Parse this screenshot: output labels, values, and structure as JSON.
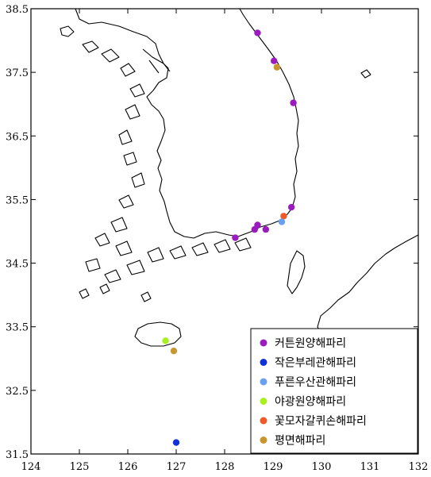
{
  "map": {
    "lon_range": [
      124,
      132
    ],
    "lat_range": [
      31.5,
      38.5
    ],
    "x_ticks": [
      124,
      125,
      126,
      127,
      128,
      129,
      130,
      131,
      132
    ],
    "y_ticks": [
      31.5,
      32.5,
      33.5,
      34.5,
      35.5,
      36.5,
      37.5,
      38.5
    ],
    "x_tick_labels": [
      "124",
      "125",
      "126",
      "127",
      "128",
      "129",
      "130",
      "131",
      "132"
    ],
    "y_tick_labels": [
      "31.5",
      "32.5",
      "33.5",
      "34.5",
      "35.5",
      "36.5",
      "37.5",
      "38.5"
    ]
  },
  "legend": {
    "placement": "bottom-right",
    "entries": [
      {
        "label": "커튼원양해파리",
        "color": "#9b1bbf"
      },
      {
        "label": "작은부레관해파리",
        "color": "#1030d8"
      },
      {
        "label": "푸른우산관해파리",
        "color": "#6aa0f0"
      },
      {
        "label": "야광원양해파리",
        "color": "#a8f020"
      },
      {
        "label": "꽃모자갈퀴손해파리",
        "color": "#f05a28"
      },
      {
        "label": "평면해파리",
        "color": "#c8962e"
      }
    ]
  },
  "points": [
    {
      "species": 0,
      "lon": 128.68,
      "lat": 38.12
    },
    {
      "species": 0,
      "lon": 129.02,
      "lat": 37.68
    },
    {
      "species": 5,
      "lon": 129.08,
      "lat": 37.58
    },
    {
      "species": 0,
      "lon": 129.42,
      "lat": 37.02
    },
    {
      "species": 0,
      "lon": 129.38,
      "lat": 35.38
    },
    {
      "species": 4,
      "lon": 129.22,
      "lat": 35.24
    },
    {
      "species": 2,
      "lon": 129.18,
      "lat": 35.15
    },
    {
      "species": 0,
      "lon": 128.68,
      "lat": 35.1
    },
    {
      "species": 0,
      "lon": 128.62,
      "lat": 35.03
    },
    {
      "species": 0,
      "lon": 128.85,
      "lat": 35.03
    },
    {
      "species": 0,
      "lon": 128.22,
      "lat": 34.9
    },
    {
      "species": 3,
      "lon": 126.78,
      "lat": 33.28
    },
    {
      "species": 5,
      "lon": 126.95,
      "lat": 33.12
    },
    {
      "species": 1,
      "lon": 127.0,
      "lat": 31.68
    }
  ]
}
